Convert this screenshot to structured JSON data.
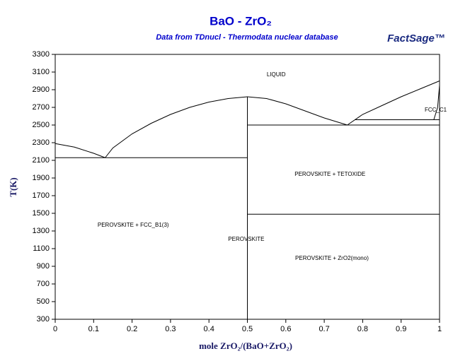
{
  "chart_data": {
    "type": "phase_diagram",
    "title": "BaO - ZrO₂",
    "subtitle": "Data from TDnucl - Thermodata nuclear database",
    "logo": "FactSage™",
    "xlabel": "mole ZrO₂/(BaO+ZrO₂)",
    "ylabel": "T(K)",
    "xlim": [
      0,
      1
    ],
    "ylim": [
      300,
      3300
    ],
    "xticks": [
      0,
      0.1,
      0.2,
      0.3,
      0.4,
      0.5,
      0.6,
      0.7,
      0.8,
      0.9,
      1
    ],
    "yticks": [
      300,
      500,
      700,
      900,
      1100,
      1300,
      1500,
      1700,
      1900,
      2100,
      2300,
      2500,
      2700,
      2900,
      3100,
      3300
    ],
    "line_color": "#000000",
    "boundaries": [
      {
        "x": [
          0,
          0.05,
          0.1,
          0.13
        ],
        "y": [
          2290,
          2250,
          2180,
          2130
        ]
      },
      {
        "x": [
          0.13,
          0.15,
          0.2,
          0.25,
          0.3,
          0.35,
          0.4,
          0.45,
          0.5
        ],
        "y": [
          2130,
          2240,
          2400,
          2520,
          2620,
          2700,
          2760,
          2800,
          2820
        ]
      },
      {
        "x": [
          0.5,
          0.55,
          0.6,
          0.65,
          0.7,
          0.76
        ],
        "y": [
          2820,
          2800,
          2740,
          2660,
          2580,
          2500
        ]
      },
      {
        "x": [
          0.76,
          0.8,
          0.85,
          0.9,
          0.95,
          1
        ],
        "y": [
          2500,
          2620,
          2720,
          2820,
          2910,
          3000
        ]
      },
      {
        "x": [
          0,
          0.5
        ],
        "y": [
          2130,
          2130
        ]
      },
      {
        "x": [
          0.5,
          0.5
        ],
        "y": [
          300,
          2820
        ]
      },
      {
        "x": [
          0.5,
          1
        ],
        "y": [
          2500,
          2500
        ]
      },
      {
        "x": [
          0.5,
          1
        ],
        "y": [
          1490,
          1490
        ]
      },
      {
        "x": [
          0.78,
          1
        ],
        "y": [
          2560,
          2560
        ]
      },
      {
        "x": [
          0.985,
          0.995,
          1
        ],
        "y": [
          2560,
          2700,
          2950
        ]
      }
    ],
    "annotations": [
      {
        "text": "LIQUID",
        "x": 0.575,
        "y": 3070
      },
      {
        "text": "FCC_C1",
        "x": 0.99,
        "y": 2670
      },
      {
        "text": "PEROVSKITE + TETOXIDE",
        "x": 0.715,
        "y": 1940
      },
      {
        "text": "PEROVSKITE + FCC_B1(3)",
        "x": 0.203,
        "y": 1364
      },
      {
        "text": "PEROVSKITE",
        "x": 0.497,
        "y": 1204
      },
      {
        "text": "PEROVSKITE + ZrO2(mono)",
        "x": 0.72,
        "y": 988
      }
    ]
  }
}
